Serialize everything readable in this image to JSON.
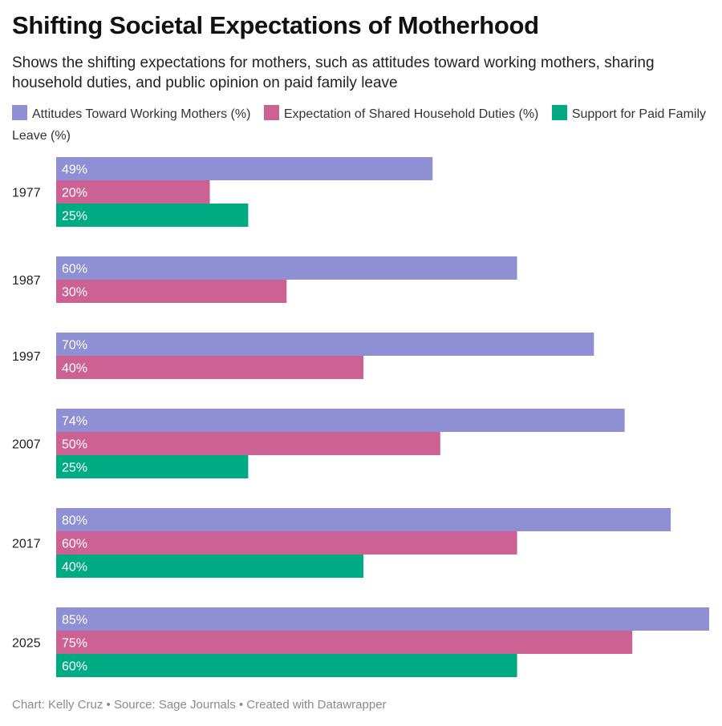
{
  "title": "Shifting Societal Expectations of Motherhood",
  "subtitle": "Shows the shifting expectations for mothers, such as attitudes toward working mothers, sharing household duties, and public opinion on paid family leave",
  "footer": "Chart: Kelly Cruz • Source: Sage Journals • Created with Datawrapper",
  "chart_data": {
    "type": "bar",
    "orientation": "horizontal",
    "grouped": true,
    "categories": [
      "1977",
      "1987",
      "1997",
      "2007",
      "2017",
      "2025"
    ],
    "value_suffix": "%",
    "xlim": [
      0,
      85
    ],
    "grid": false,
    "legend_position": "top",
    "series": [
      {
        "name": "Attitudes Toward Working Mothers (%)",
        "color": "#8f8fd4",
        "values": [
          49,
          60,
          70,
          74,
          80,
          85
        ]
      },
      {
        "name": "Expectation of Shared Household Duties (%)",
        "color": "#cc6193",
        "values": [
          20,
          30,
          40,
          50,
          60,
          75
        ]
      },
      {
        "name": "Support for Paid Family Leave (%)",
        "color": "#00ab84",
        "values": [
          25,
          null,
          null,
          25,
          40,
          60
        ]
      }
    ]
  }
}
